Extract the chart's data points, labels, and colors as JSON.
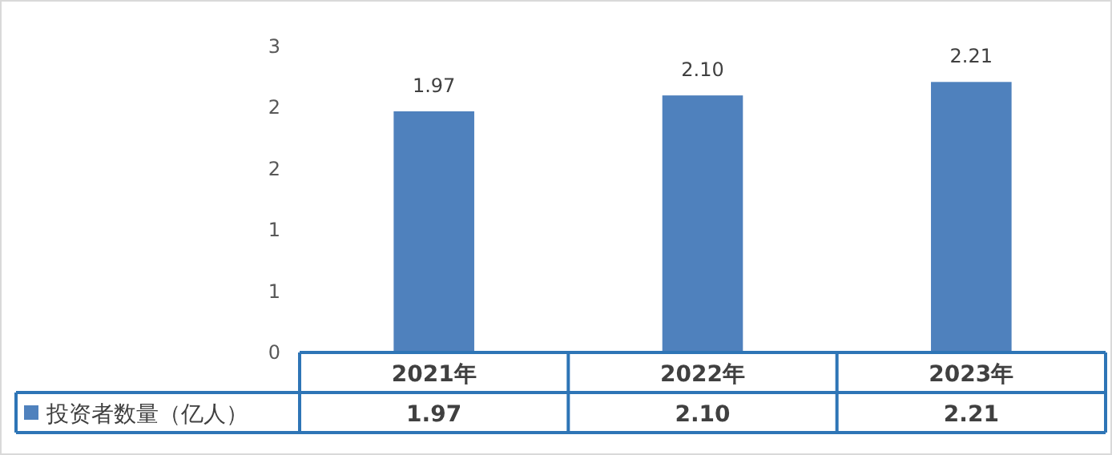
{
  "chart_data": {
    "type": "bar",
    "categories": [
      "2021年",
      "2022年",
      "2023年"
    ],
    "series": [
      {
        "name": "投资者数量（亿人）",
        "color": "#4f81bd",
        "values": [
          1.97,
          2.1,
          2.21
        ],
        "value_labels": [
          "1.97",
          "2.10",
          "2.21"
        ]
      }
    ],
    "ylim": [
      0,
      2.5
    ],
    "yticks": [
      0,
      {
        "value": 0.5,
        "label": "1"
      },
      1,
      {
        "value": 1.5,
        "label": "2"
      },
      2,
      {
        "value": 2.5,
        "label": "3"
      }
    ],
    "legend": "bottom"
  }
}
